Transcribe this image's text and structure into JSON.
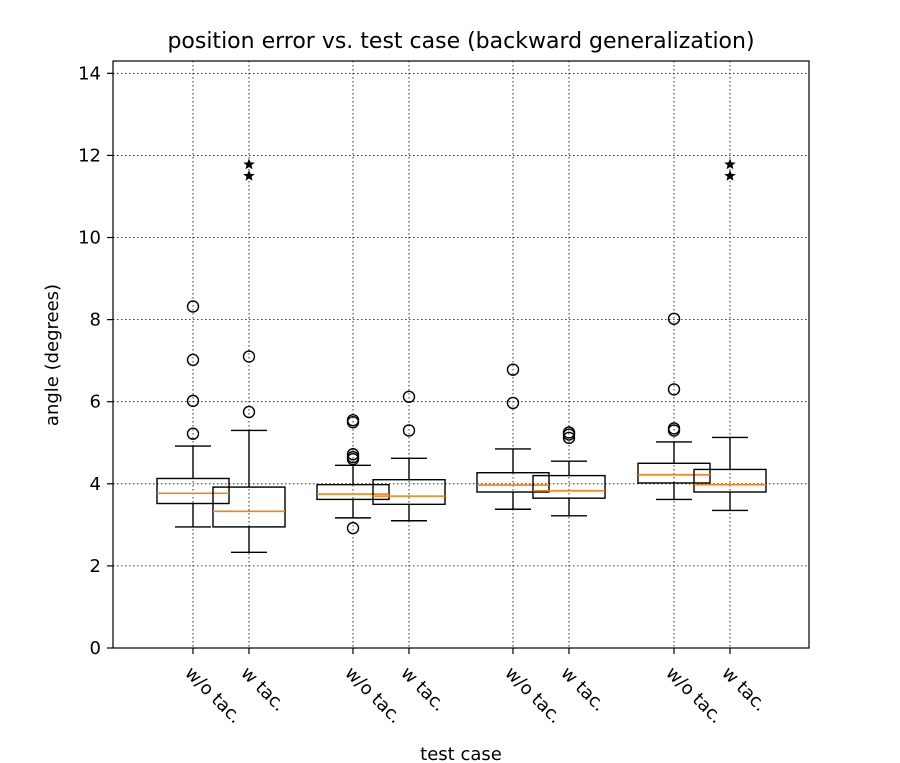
{
  "chart_data": {
    "type": "box",
    "title": "position error vs. test case (backward generalization)",
    "xlabel": "test case",
    "ylabel": "angle (degrees)",
    "ylim": [
      0,
      14.3
    ],
    "yticks": [
      0,
      2,
      4,
      6,
      8,
      10,
      12,
      14
    ],
    "grid": true,
    "categories": [
      "w/o tac.",
      "w tac.",
      "w/o tac.",
      "w tac.",
      "w/o tac.",
      "w tac.",
      "w/o tac.",
      "w tac."
    ],
    "colors": {
      "box": "#000000",
      "median": "#ff7f0e"
    },
    "boxes": [
      {
        "label": "w/o tac.",
        "whisker_low": 2.95,
        "q1": 3.52,
        "median": 3.77,
        "q3": 4.13,
        "whisker_high": 4.92,
        "fliers": [
          5.22,
          6.02,
          7.02,
          8.32
        ]
      },
      {
        "label": "w tac.",
        "whisker_low": 2.33,
        "q1": 2.95,
        "median": 3.33,
        "q3": 3.92,
        "whisker_high": 5.3,
        "fliers": [
          5.75,
          7.1
        ]
      },
      {
        "label": "w/o tac.",
        "whisker_low": 3.17,
        "q1": 3.62,
        "median": 3.75,
        "q3": 3.98,
        "whisker_high": 4.45,
        "fliers": [
          2.92,
          4.6,
          4.65,
          4.72,
          5.5,
          5.55
        ]
      },
      {
        "label": "w tac.",
        "whisker_low": 3.1,
        "q1": 3.5,
        "median": 3.7,
        "q3": 4.1,
        "whisker_high": 4.62,
        "fliers": [
          5.3,
          6.12
        ]
      },
      {
        "label": "w/o tac.",
        "whisker_low": 3.38,
        "q1": 3.8,
        "median": 3.97,
        "q3": 4.27,
        "whisker_high": 4.85,
        "fliers": [
          5.97,
          6.78
        ]
      },
      {
        "label": "w tac.",
        "whisker_low": 3.22,
        "q1": 3.65,
        "median": 3.83,
        "q3": 4.2,
        "whisker_high": 4.55,
        "fliers": [
          5.12,
          5.2,
          5.25
        ]
      },
      {
        "label": "w/o tac.",
        "whisker_low": 3.62,
        "q1": 4.02,
        "median": 4.22,
        "q3": 4.5,
        "whisker_high": 5.02,
        "fliers": [
          5.3,
          5.35,
          6.3,
          8.02
        ]
      },
      {
        "label": "w tac.",
        "whisker_low": 3.35,
        "q1": 3.8,
        "median": 3.98,
        "q3": 4.35,
        "whisker_high": 5.13,
        "fliers": []
      }
    ],
    "star_markers": [
      {
        "x_group": 1,
        "values": [
          11.5,
          11.78
        ]
      },
      {
        "x_group": 7,
        "values": [
          11.5,
          11.78
        ]
      }
    ]
  }
}
